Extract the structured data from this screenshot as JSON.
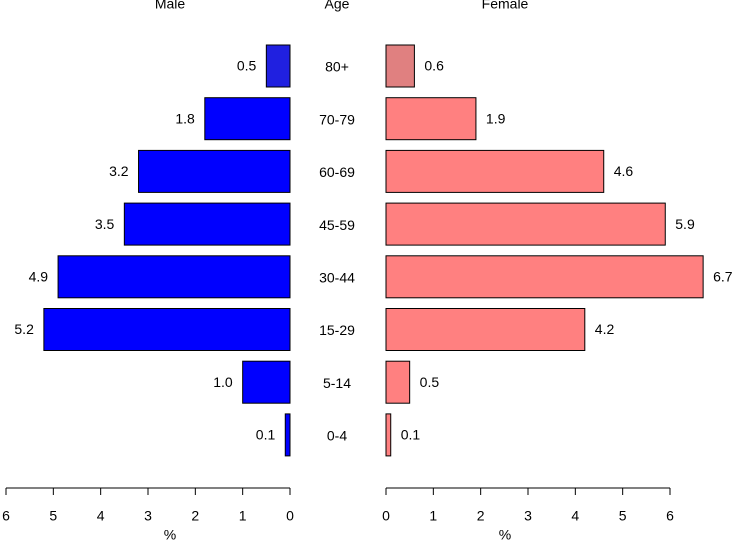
{
  "chart_data": {
    "type": "pyramid",
    "left_title": "Male",
    "center_title": "Age",
    "right_title": "Female",
    "xlabel": "%",
    "categories": [
      "80+",
      "70-79",
      "60-69",
      "45-59",
      "30-44",
      "15-29",
      "5-14",
      "0-4"
    ],
    "series": [
      {
        "name": "Male",
        "side": "left",
        "color": "#0000ff",
        "colors": [
          "#2020e0",
          "#0000ff",
          "#0000ff",
          "#0000ff",
          "#0000ff",
          "#0000ff",
          "#0000ff",
          "#0000ff"
        ],
        "values": [
          0.5,
          1.8,
          3.2,
          3.5,
          4.9,
          5.2,
          1.0,
          0.1
        ],
        "value_labels": [
          "0.5",
          "1.8",
          "3.2",
          "3.5",
          "4.9",
          "5.2",
          "1.0",
          "0.1"
        ]
      },
      {
        "name": "Female",
        "side": "right",
        "color": "#ff8080",
        "colors": [
          "#e08080",
          "#ff8080",
          "#ff8080",
          "#ff8080",
          "#ff8080",
          "#ff8080",
          "#ff8080",
          "#ff8080"
        ],
        "values": [
          0.6,
          1.9,
          4.6,
          5.9,
          6.7,
          4.2,
          0.5,
          0.1
        ],
        "value_labels": [
          "0.6",
          "1.9",
          "4.6",
          "5.9",
          "6.7",
          "4.2",
          "0.5",
          "0.1"
        ]
      }
    ],
    "xlim": [
      0,
      6
    ],
    "xticks": [
      0,
      1,
      2,
      3,
      4,
      5,
      6
    ]
  }
}
